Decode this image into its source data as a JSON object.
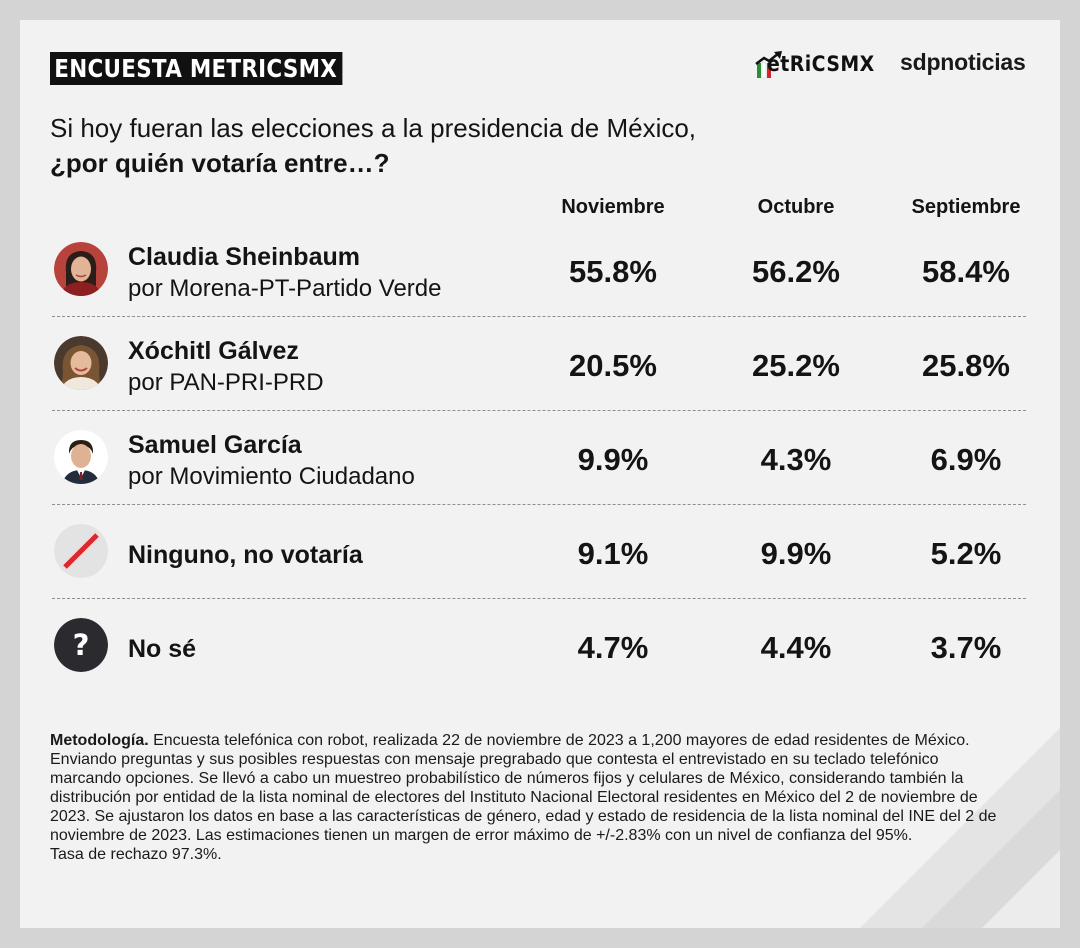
{
  "header": {
    "badge": "ENCUESTA METRICSMX",
    "logo_metrics": "etRiCSMX",
    "logo_sdp": "sdpnoticias"
  },
  "question": {
    "line1": "Si hoy fueran las elecciones a la presidencia de México,",
    "line2": "¿por quién votaría entre…?"
  },
  "chart_data": {
    "type": "table",
    "title": "Si hoy fueran las elecciones a la presidencia de México, ¿por quién votaría entre…?",
    "columns": [
      "Noviembre",
      "Octubre",
      "Septiembre"
    ],
    "rows": [
      {
        "name": "Claudia Sheinbaum",
        "party": "por Morena-PT-Partido Verde",
        "values": [
          "55.8%",
          "56.2%",
          "58.4%"
        ],
        "icon": "portrait-claudia-sheinbaum"
      },
      {
        "name": "Xóchitl Gálvez",
        "party": "por PAN-PRI-PRD",
        "values": [
          "20.5%",
          "25.2%",
          "25.8%"
        ],
        "icon": "portrait-xochitl-galvez"
      },
      {
        "name": "Samuel García",
        "party": "por Movimiento Ciudadano",
        "values": [
          "9.9%",
          "4.3%",
          "6.9%"
        ],
        "icon": "portrait-samuel-garcia"
      },
      {
        "name": "Ninguno, no votaría",
        "party": "",
        "values": [
          "9.1%",
          "9.9%",
          "5.2%"
        ],
        "icon": "slash-icon"
      },
      {
        "name": "No sé",
        "party": "",
        "values": [
          "4.7%",
          "4.4%",
          "3.7%"
        ],
        "icon": "question-icon"
      }
    ]
  },
  "methodology": {
    "label": "Metodología.",
    "text": " Encuesta telefónica con robot, realizada 22 de noviembre de 2023 a 1,200 mayores de edad residentes de México. Enviando preguntas y sus posibles respuestas con mensaje pregrabado que contesta el entrevistado en su teclado telefónico marcando opciones. Se llevó a cabo un muestreo probabilístico de números fijos y celulares de México, considerando también la distribución por entidad de la lista nominal de electores del Instituto Nacional Electoral residentes en México del 2 de noviembre de 2023. Se ajustaron los datos en base a las características de género, edad y estado de residencia de la lista nominal del INE del 2 de noviembre de 2023. Las estimaciones tienen un margen de error máximo de +/-2.83% con un nivel de confianza del 95%.",
    "rejection": "Tasa de rechazo 97.3%."
  },
  "colors": {
    "background": "#f2f2f2",
    "text": "#141414",
    "accent_red": "#e0262a",
    "question_badge": "#2b2b2f"
  }
}
